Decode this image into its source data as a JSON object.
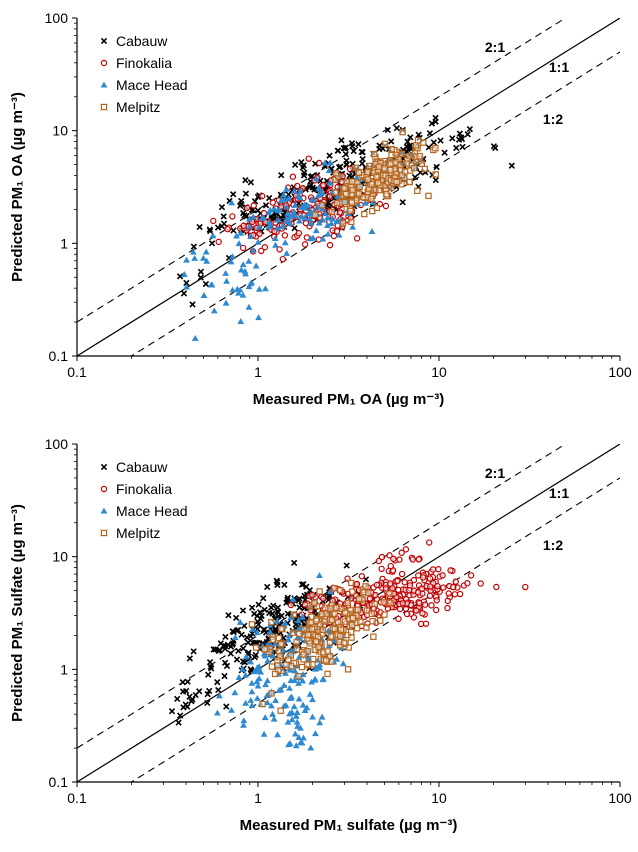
{
  "chart_data": [
    {
      "type": "scatter",
      "scale": "log-log",
      "xlabel": "Measured PM₁ OA (µg m⁻³)",
      "ylabel": "Predicted PM₁ OA (µg m⁻³)",
      "xlim": [
        0.1,
        100
      ],
      "ylim": [
        0.1,
        100
      ],
      "xticks": [
        "0.1",
        "1",
        "10",
        "100"
      ],
      "yticks": [
        "0.1",
        "1",
        "10",
        "100"
      ],
      "grid": false,
      "legend_position": "top-left",
      "reference_lines": [
        {
          "label": "2:1",
          "ratio": 2,
          "style": "dashed"
        },
        {
          "label": "1:1",
          "ratio": 1,
          "style": "solid"
        },
        {
          "label": "1:2",
          "ratio": 0.5,
          "style": "dashed"
        }
      ],
      "series": [
        {
          "name": "Cabauw",
          "marker": "x",
          "color": "#000000",
          "clusters": [
            {
              "cx": 3.0,
              "cy": 3.5,
              "sx": 0.32,
              "sy": 0.22,
              "corr": 0.7,
              "n": 240
            },
            {
              "cx": 0.9,
              "cy": 1.8,
              "sx": 0.12,
              "sy": 0.12,
              "corr": 0.3,
              "n": 45
            },
            {
              "cx": 0.45,
              "cy": 0.5,
              "sx": 0.07,
              "sy": 0.12,
              "corr": 0.6,
              "n": 8
            },
            {
              "cx": 8.5,
              "cy": 8.5,
              "sx": 0.06,
              "sy": 0.06,
              "corr": 0.5,
              "n": 10
            }
          ]
        },
        {
          "name": "Finokalia",
          "marker": "circle",
          "color": "#c00000",
          "clusters": [
            {
              "cx": 2.0,
              "cy": 2.0,
              "sx": 0.18,
              "sy": 0.17,
              "corr": 0.4,
              "n": 150
            },
            {
              "cx": 1.0,
              "cy": 1.4,
              "sx": 0.08,
              "sy": 0.05,
              "corr": 0.2,
              "n": 35
            }
          ]
        },
        {
          "name": "Mace Head",
          "marker": "triangle",
          "color": "#2e8ad0",
          "clusters": [
            {
              "cx": 2.0,
              "cy": 2.0,
              "sx": 0.2,
              "sy": 0.2,
              "corr": 0.6,
              "n": 120
            },
            {
              "cx": 0.7,
              "cy": 0.45,
              "sx": 0.16,
              "sy": 0.2,
              "corr": 0.2,
              "n": 40
            }
          ]
        },
        {
          "name": "Melpitz",
          "marker": "square",
          "color": "#b5651d",
          "clusters": [
            {
              "cx": 5.0,
              "cy": 4.0,
              "sx": 0.12,
              "sy": 0.15,
              "corr": 0.6,
              "n": 170
            },
            {
              "cx": 3.5,
              "cy": 2.8,
              "sx": 0.1,
              "sy": 0.1,
              "corr": 0.5,
              "n": 30
            }
          ]
        }
      ]
    },
    {
      "type": "scatter",
      "scale": "log-log",
      "xlabel": "Measured PM₁ sulfate (µg m⁻³)",
      "ylabel": "Predicted PM₁ Sulfate (µg m⁻³)",
      "xlim": [
        0.1,
        100
      ],
      "ylim": [
        0.1,
        100
      ],
      "xticks": [
        "0.1",
        "1",
        "10",
        "100"
      ],
      "yticks": [
        "0.1",
        "1",
        "10",
        "100"
      ],
      "grid": false,
      "legend_position": "top-left",
      "reference_lines": [
        {
          "label": "2:1",
          "ratio": 2,
          "style": "dashed"
        },
        {
          "label": "1:1",
          "ratio": 1,
          "style": "solid"
        },
        {
          "label": "1:2",
          "ratio": 0.5,
          "style": "dashed"
        }
      ],
      "series": [
        {
          "name": "Cabauw",
          "marker": "x",
          "color": "#000000",
          "clusters": [
            {
              "cx": 1.3,
              "cy": 2.3,
              "sx": 0.2,
              "sy": 0.2,
              "corr": 0.6,
              "n": 220
            },
            {
              "cx": 0.45,
              "cy": 0.6,
              "sx": 0.1,
              "sy": 0.15,
              "corr": 0.8,
              "n": 25
            }
          ]
        },
        {
          "name": "Finokalia",
          "marker": "circle",
          "color": "#c00000",
          "clusters": [
            {
              "cx": 5.5,
              "cy": 4.5,
              "sx": 0.24,
              "sy": 0.12,
              "corr": 0.5,
              "n": 260
            },
            {
              "cx": 6.0,
              "cy": 10.0,
              "sx": 0.05,
              "sy": 0.05,
              "corr": 0.3,
              "n": 12
            }
          ]
        },
        {
          "name": "Mace Head",
          "marker": "triangle",
          "color": "#2e8ad0",
          "clusters": [
            {
              "cx": 1.4,
              "cy": 1.1,
              "sx": 0.15,
              "sy": 0.25,
              "corr": 0.4,
              "n": 140
            },
            {
              "cx": 1.6,
              "cy": 0.35,
              "sx": 0.1,
              "sy": 0.12,
              "corr": 0.1,
              "n": 30
            }
          ]
        },
        {
          "name": "Melpitz",
          "marker": "square",
          "color": "#b5651d",
          "clusters": [
            {
              "cx": 2.2,
              "cy": 2.0,
              "sx": 0.15,
              "sy": 0.18,
              "corr": 0.5,
              "n": 170
            },
            {
              "cx": 3.0,
              "cy": 3.5,
              "sx": 0.1,
              "sy": 0.1,
              "corr": 0.5,
              "n": 25
            }
          ]
        }
      ]
    }
  ]
}
